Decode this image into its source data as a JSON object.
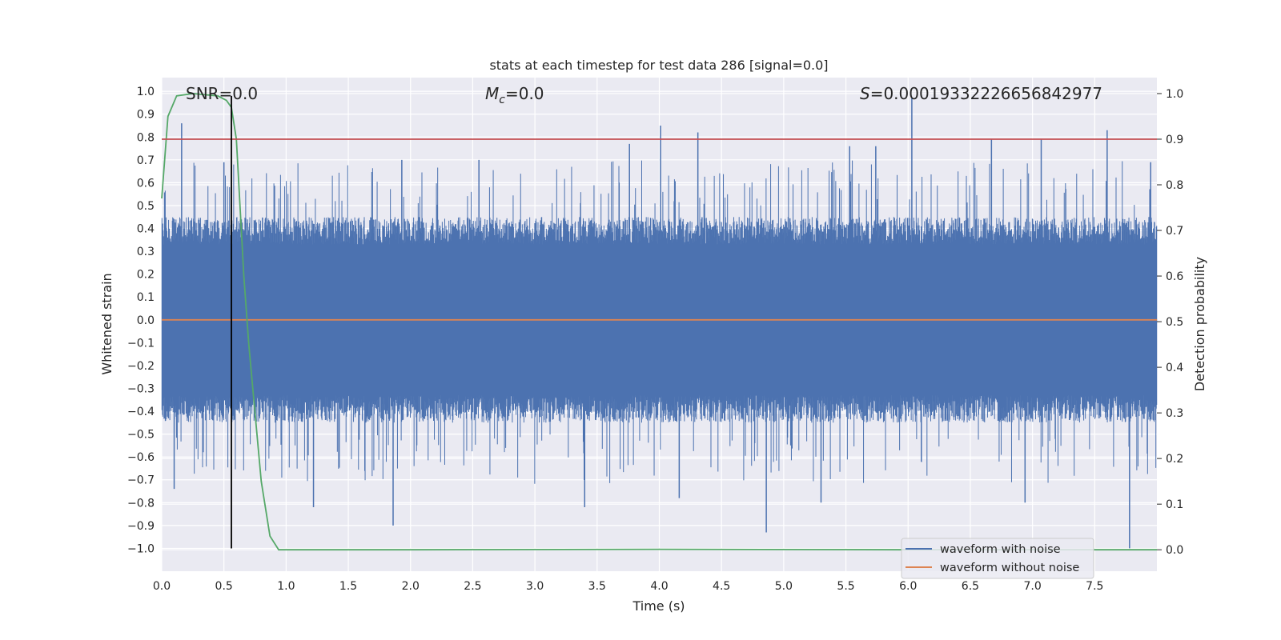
{
  "chart_data": {
    "type": "line",
    "title": "stats at each timestep for test data 286 [signal=0.0]",
    "xlabel": "Time (s)",
    "ylabel": "Whitened strain",
    "y2label": "Detection probability",
    "xlim": [
      0,
      8
    ],
    "ylim": [
      -1.1,
      1.06
    ],
    "y2lim": [
      -0.047,
      1.035
    ],
    "xticks": [
      "0.0",
      "0.5",
      "1.0",
      "1.5",
      "2.0",
      "2.5",
      "3.0",
      "3.5",
      "4.0",
      "4.5",
      "5.0",
      "5.5",
      "6.0",
      "6.5",
      "7.0",
      "7.5"
    ],
    "yticks": [
      "1.0",
      "0.9",
      "0.8",
      "0.7",
      "0.6",
      "0.5",
      "0.4",
      "0.3",
      "0.2",
      "0.1",
      "0.0",
      "-0.1",
      "-0.2",
      "-0.3",
      "-0.4",
      "-0.5",
      "-0.6",
      "-0.7",
      "-0.8",
      "-0.9",
      "-1.0"
    ],
    "y2ticks": [
      "1.0",
      "0.9",
      "0.8",
      "0.7",
      "0.6",
      "0.5",
      "0.4",
      "0.3",
      "0.2",
      "0.1",
      "0.0"
    ],
    "grid": true,
    "legend": "lower-right",
    "annotations": {
      "snr": "SNR=0.0",
      "mc_symbol": "M",
      "mc_sub": "c",
      "mc_value": "=0.0",
      "s_symbol": "S",
      "s_value": "=0.00019332226656842977"
    },
    "series": [
      {
        "name": "waveform with noise",
        "axis": "left",
        "color": "#4c72b0",
        "envelope": "dense noise; typical extent about ±0.4",
        "peaks_x": [
          0.1,
          0.16,
          0.5,
          1.22,
          1.86,
          1.93,
          2.55,
          3.4,
          3.76,
          4.01,
          4.16,
          4.31,
          4.86,
          5.3,
          5.53,
          5.74,
          6.03,
          6.67,
          6.94,
          7.07,
          7.6,
          7.78,
          7.95
        ],
        "peaks_y": [
          -0.74,
          0.86,
          0.69,
          -0.82,
          -0.9,
          0.7,
          0.7,
          -0.82,
          0.77,
          0.85,
          -0.78,
          0.82,
          -0.93,
          -0.8,
          0.76,
          0.76,
          0.97,
          0.79,
          -0.8,
          0.79,
          0.83,
          -1.0,
          0.69
        ]
      },
      {
        "name": "waveform without noise",
        "axis": "left",
        "color": "#dd8452",
        "x": [
          0,
          8
        ],
        "y": [
          0.0,
          0.0
        ]
      },
      {
        "axis": "right",
        "color": "#55a868",
        "x": [
          0.0,
          0.05,
          0.12,
          0.25,
          0.45,
          0.52,
          0.56,
          0.6,
          0.63,
          0.66,
          0.7,
          0.75,
          0.8,
          0.87,
          0.94,
          1.0,
          2.0,
          4.0,
          6.0,
          8.0
        ],
        "y": [
          0.77,
          0.95,
          0.995,
          1.0,
          0.995,
          0.985,
          0.97,
          0.9,
          0.75,
          0.6,
          0.45,
          0.3,
          0.15,
          0.03,
          0.0,
          0.0,
          0.0,
          0.001,
          0.0,
          0.0
        ]
      },
      {
        "axis": "right",
        "color": "#c44e52",
        "x": [
          0,
          8
        ],
        "y": [
          0.9,
          0.9
        ]
      },
      {
        "axis": "left",
        "color": "#000000",
        "x": [
          0.56,
          0.56
        ],
        "y": [
          -1.0,
          0.98
        ]
      }
    ]
  }
}
